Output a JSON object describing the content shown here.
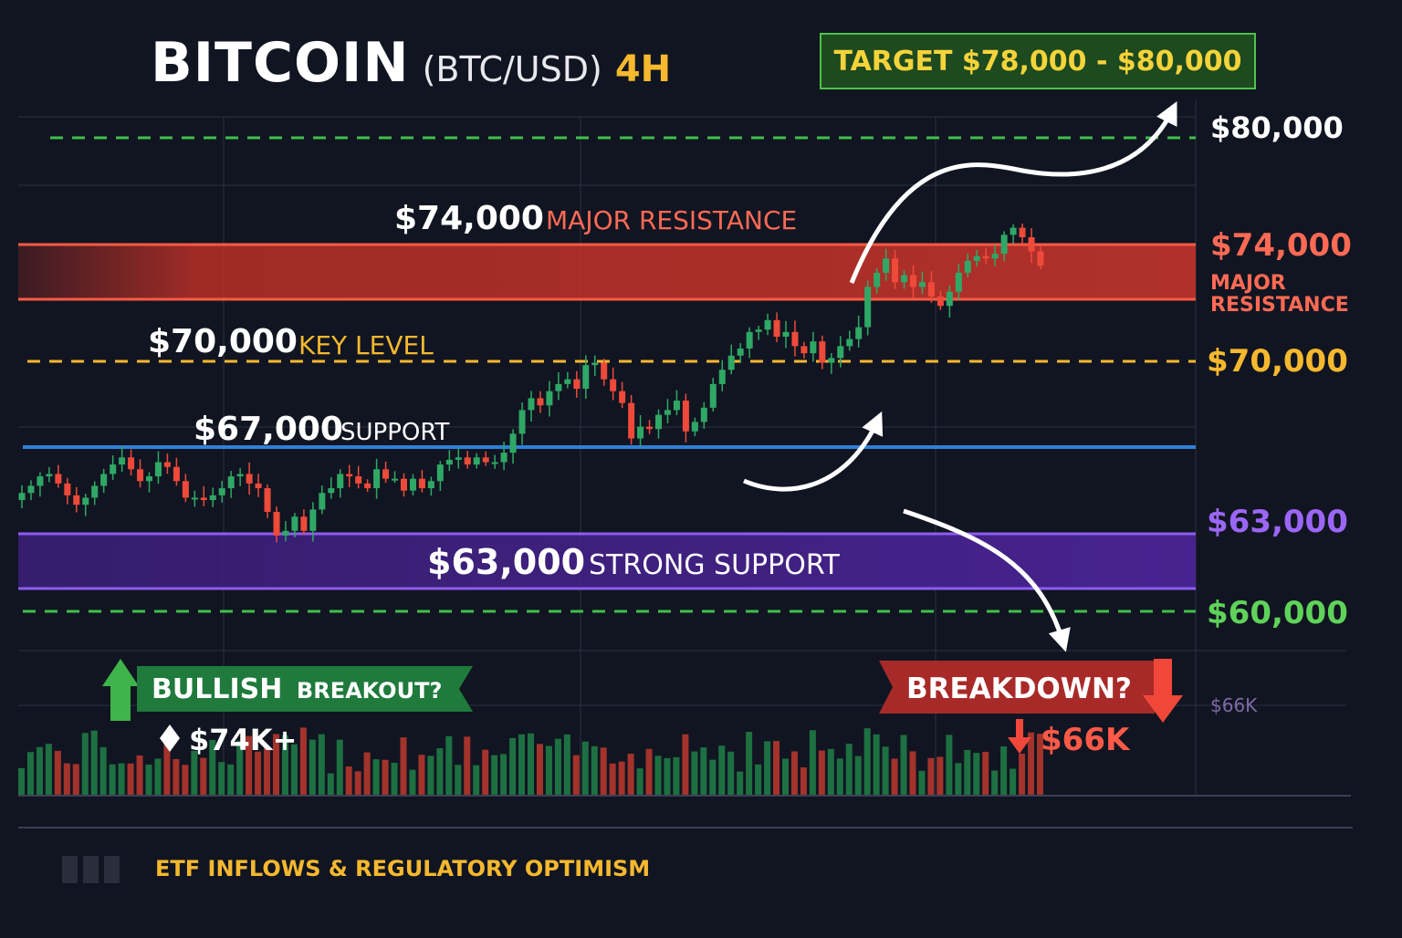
{
  "header": {
    "title": "BITCOIN",
    "pair": "(BTC/USD)",
    "timeframe": "4H",
    "target": "TARGET $78,000 - $80,000"
  },
  "colors": {
    "background": "#111521",
    "resistance": "#ee4a3a",
    "key_level": "#f5b82e",
    "support": "#2f80d8",
    "strong_support": "#8a4ee0",
    "target_line": "#3fbf4a",
    "bull_candle": "#2fa866",
    "bear_candle": "#ee4a3a"
  },
  "levels": {
    "resistance_value": "$74,000",
    "resistance_tag": "MAJOR RESISTANCE",
    "key_value": "$70,000",
    "key_tag": "KEY LEVEL",
    "support_value": "$67,000",
    "support_tag": "SUPPORT",
    "strong_value": "$63,000",
    "strong_tag": "STRONG SUPPORT"
  },
  "right_axis": {
    "p80": "$80,000",
    "p74": "$74,000",
    "major1": "MAJOR",
    "major2": "RESISTANCE",
    "p70": "$70,000",
    "p63": "$63,000",
    "p60": "$60,000",
    "volume_label": "$66K"
  },
  "scenarios": {
    "bull_label_a": "BULLISH",
    "bull_label_b": "BREAKOUT?",
    "bull_target": "$74K+",
    "bear_label": "BREAKDOWN?",
    "bear_target": "$66K"
  },
  "footer": {
    "note": "ETF INFLOWS & REGULATORY OPTIMISM"
  },
  "chart_data": {
    "type": "candlestick",
    "timeframe": "4H",
    "y_unit": "USD",
    "ylim": [
      59000,
      81000
    ],
    "grid": true,
    "levels": [
      {
        "value": 80000,
        "label": "$80,000",
        "style": "dashed"
      },
      {
        "value": 74000,
        "label": "$74,000 MAJOR RESISTANCE",
        "style": "zone",
        "zone": [
          72000,
          74000
        ]
      },
      {
        "value": 70000,
        "label": "$70,000 KEY LEVEL",
        "style": "dashed"
      },
      {
        "value": 67000,
        "label": "$67,000 SUPPORT",
        "style": "solid"
      },
      {
        "value": 63000,
        "label": "$63,000 STRONG SUPPORT",
        "style": "zone",
        "zone": [
          62000,
          64000
        ]
      },
      {
        "value": 60000,
        "label": "$60,000",
        "style": "dashed"
      }
    ],
    "closes": [
      65000,
      65300,
      65700,
      65800,
      65400,
      64900,
      64500,
      64800,
      65300,
      65800,
      66200,
      66500,
      66000,
      65500,
      65700,
      66300,
      66100,
      65500,
      64800,
      64800,
      64700,
      64900,
      65200,
      65700,
      65800,
      65400,
      65200,
      64200,
      63200,
      63400,
      64000,
      63400,
      64300,
      65000,
      65200,
      65800,
      65700,
      65400,
      65200,
      66000,
      65600,
      65600,
      65100,
      65600,
      65200,
      65500,
      66200,
      66400,
      66500,
      66200,
      66500,
      66300,
      66300,
      66700,
      67500,
      68500,
      69000,
      68700,
      69300,
      69600,
      69800,
      69400,
      70400,
      70500,
      69800,
      69300,
      68800,
      67300,
      67800,
      67700,
      68300,
      68500,
      68900,
      67600,
      68000,
      68600,
      69600,
      70200,
      70800,
      71100,
      71800,
      71900,
      72300,
      71600,
      71800,
      71200,
      70900,
      71400,
      70500,
      70700,
      71200,
      71500,
      72000,
      73700,
      74300,
      74900,
      73900,
      74200,
      73700,
      73900,
      73300,
      72900,
      73500,
      74300,
      74800,
      75000,
      74900,
      75100,
      75900,
      76200,
      75800,
      75200,
      74600
    ]
  }
}
